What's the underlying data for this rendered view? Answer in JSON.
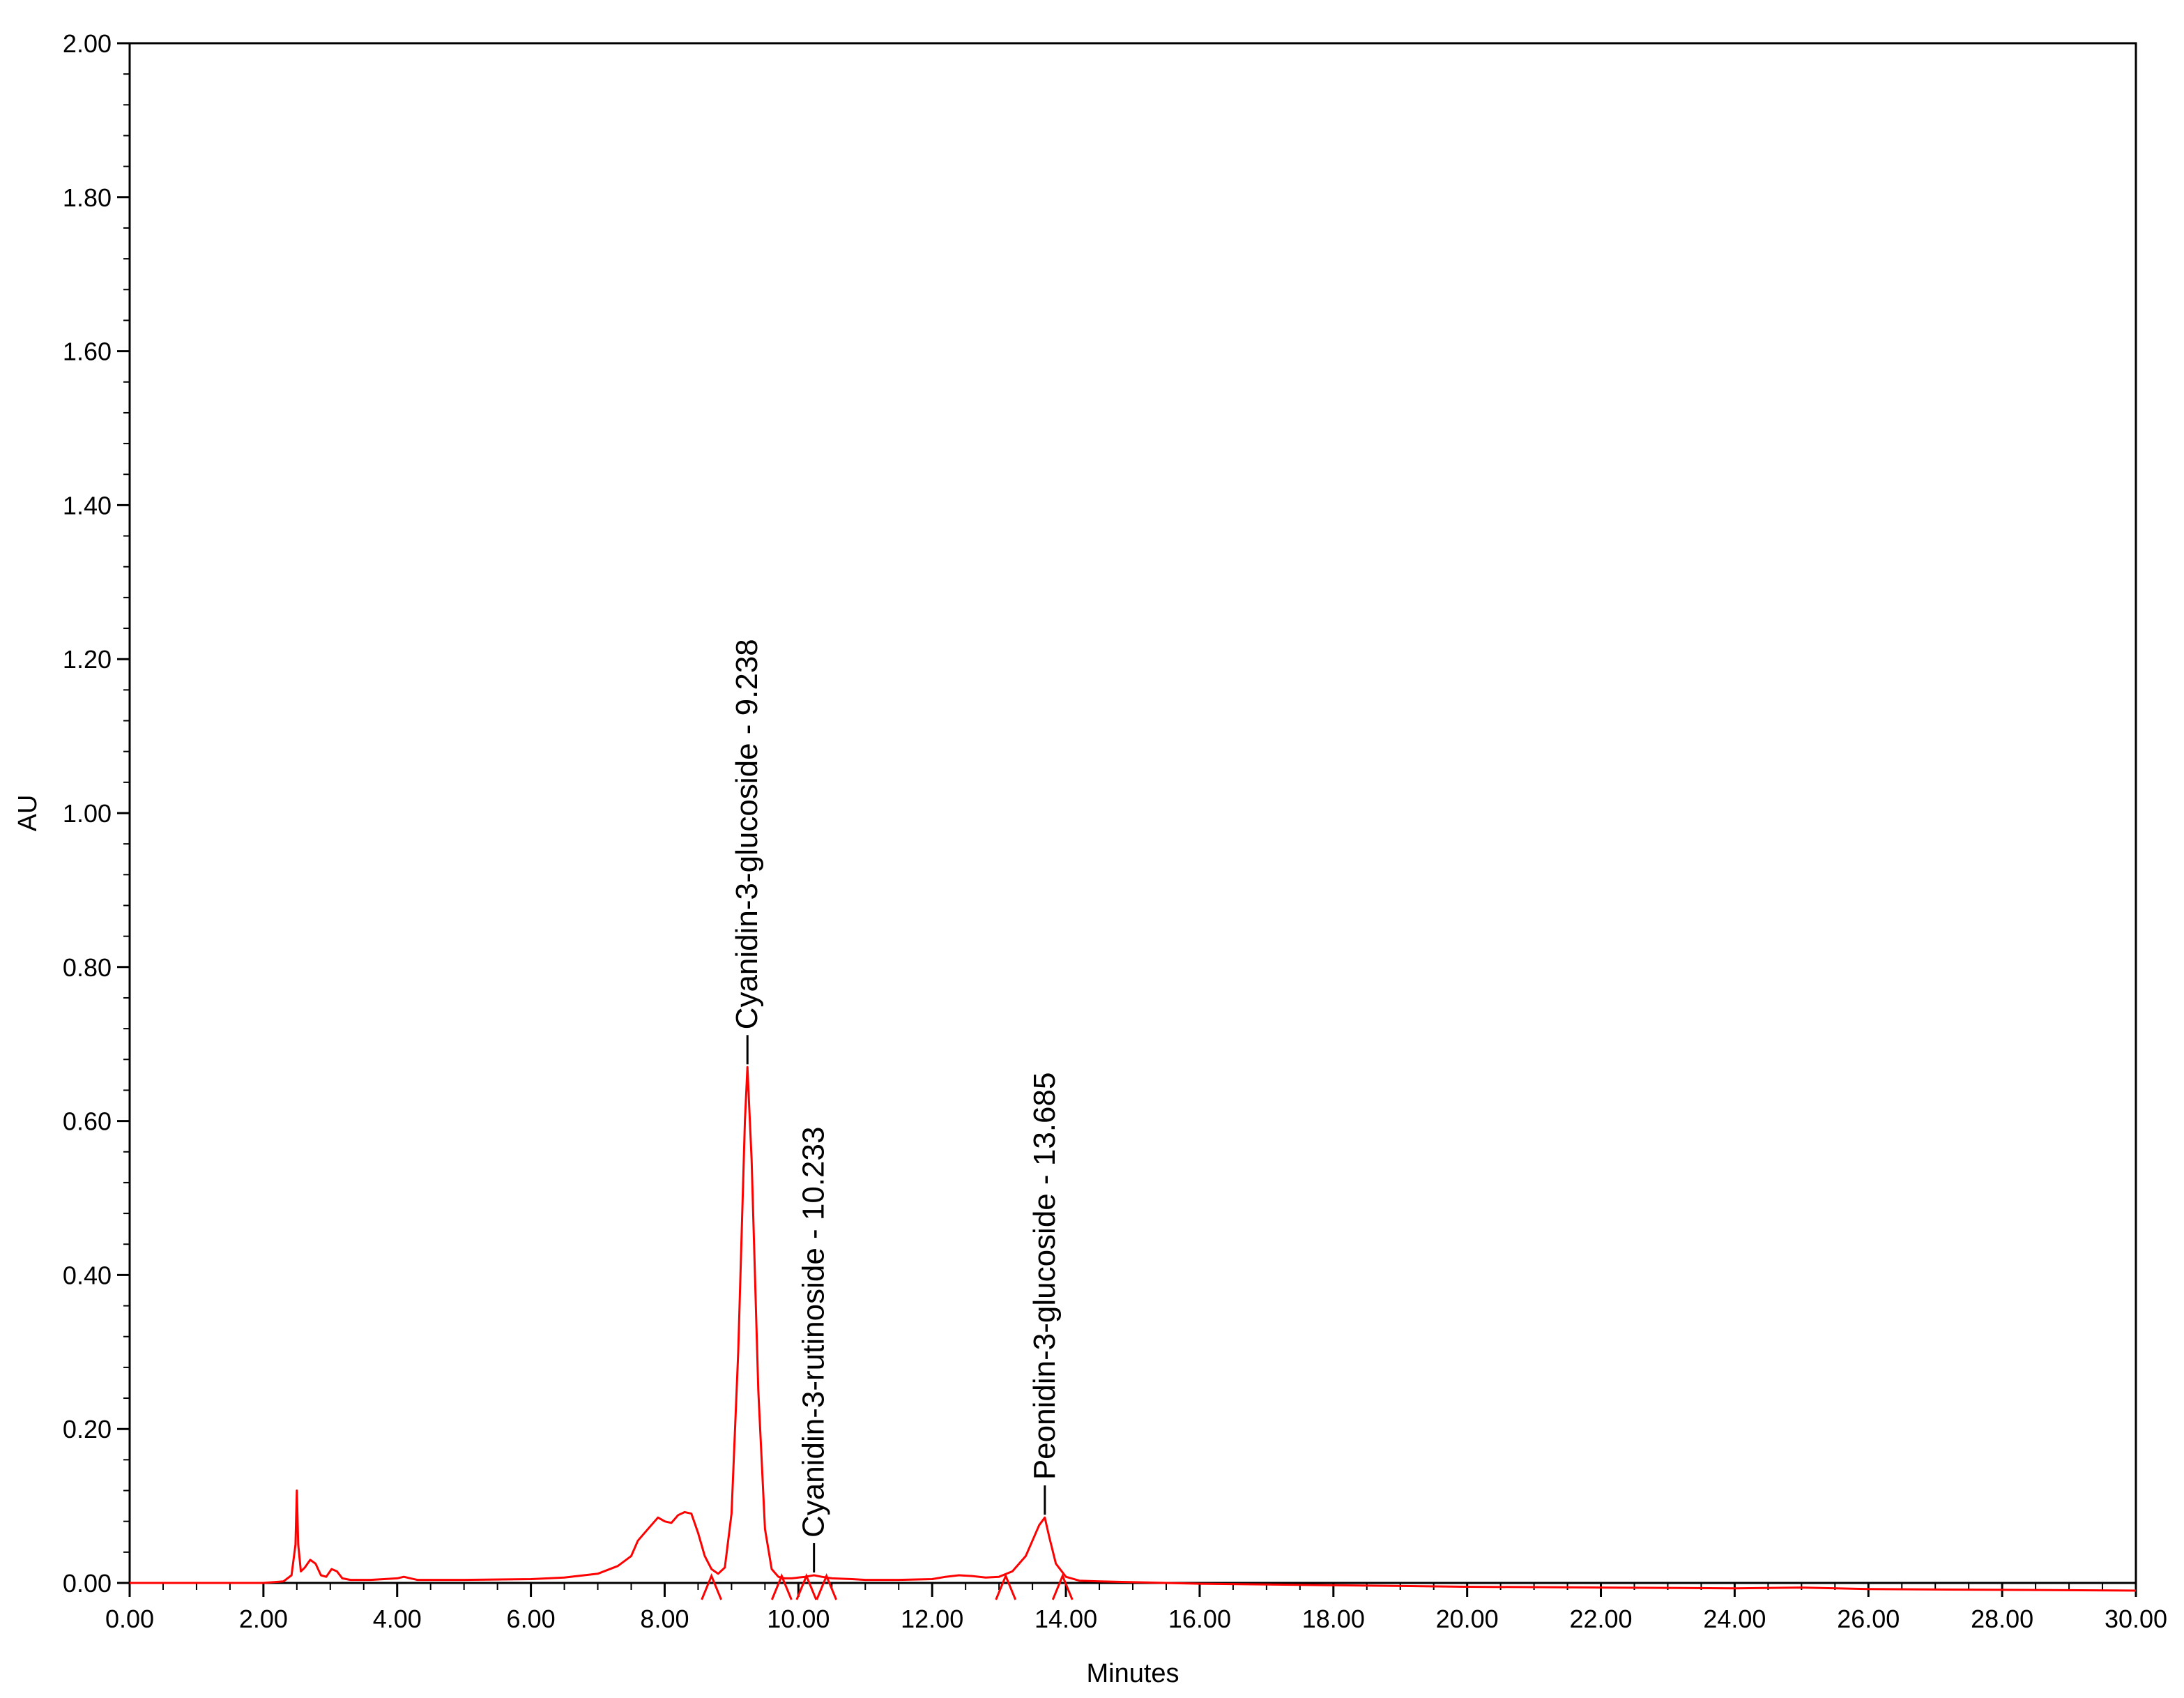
{
  "chart_data": {
    "type": "line",
    "title": "",
    "xlabel": "Minutes",
    "ylabel": "AU",
    "xlim": [
      0,
      30
    ],
    "ylim": [
      0,
      2.0
    ],
    "x_ticks": [
      "0.00",
      "2.00",
      "4.00",
      "6.00",
      "8.00",
      "10.00",
      "12.00",
      "14.00",
      "16.00",
      "18.00",
      "20.00",
      "22.00",
      "24.00",
      "26.00",
      "28.00",
      "30.00"
    ],
    "y_ticks": [
      "0.00",
      "0.20",
      "0.40",
      "0.60",
      "0.80",
      "1.00",
      "1.20",
      "1.40",
      "1.60",
      "1.80",
      "2.00"
    ],
    "grid": false,
    "colors": {
      "trace": "#ff0000",
      "axis": "#000000",
      "background": "#ffffff"
    },
    "series": [
      {
        "x": [
          0.0,
          1.0,
          2.0,
          2.3,
          2.42,
          2.48,
          2.5,
          2.52,
          2.56,
          2.62,
          2.7,
          2.78,
          2.86,
          2.94,
          3.02,
          3.1,
          3.18,
          3.3,
          3.6,
          4.0,
          4.1,
          4.2,
          4.3,
          4.6,
          5.0,
          6.0,
          6.5,
          7.0,
          7.3,
          7.5,
          7.6,
          7.75,
          7.9,
          8.0,
          8.1,
          8.2,
          8.3,
          8.4,
          8.5,
          8.6,
          8.7,
          8.8,
          8.9,
          9.0,
          9.1,
          9.2,
          9.238,
          9.3,
          9.4,
          9.5,
          9.6,
          9.7,
          9.8,
          9.9,
          10.0,
          10.1,
          10.233,
          10.35,
          10.5,
          10.8,
          11.0,
          11.5,
          12.0,
          12.2,
          12.4,
          12.6,
          12.8,
          13.0,
          13.2,
          13.4,
          13.5,
          13.6,
          13.685,
          13.75,
          13.85,
          14.0,
          14.2,
          14.5,
          15.0,
          16.0,
          18.0,
          20.0,
          22.0,
          24.0,
          25.0,
          26.0,
          28.0,
          30.0
        ],
        "y": [
          0.0,
          0.0,
          0.0,
          0.002,
          0.01,
          0.05,
          0.12,
          0.05,
          0.015,
          0.02,
          0.03,
          0.025,
          0.01,
          0.008,
          0.018,
          0.015,
          0.006,
          0.004,
          0.004,
          0.006,
          0.008,
          0.006,
          0.004,
          0.004,
          0.004,
          0.005,
          0.007,
          0.012,
          0.022,
          0.035,
          0.055,
          0.07,
          0.085,
          0.08,
          0.078,
          0.088,
          0.092,
          0.09,
          0.065,
          0.035,
          0.018,
          0.012,
          0.02,
          0.09,
          0.3,
          0.6,
          0.67,
          0.55,
          0.25,
          0.07,
          0.018,
          0.008,
          0.006,
          0.006,
          0.007,
          0.008,
          0.01,
          0.008,
          0.006,
          0.005,
          0.004,
          0.004,
          0.005,
          0.008,
          0.01,
          0.009,
          0.007,
          0.008,
          0.015,
          0.035,
          0.055,
          0.075,
          0.085,
          0.06,
          0.025,
          0.008,
          0.003,
          0.002,
          0.001,
          -0.001,
          -0.003,
          -0.005,
          -0.006,
          -0.007,
          -0.006,
          -0.008,
          -0.009,
          -0.01
        ]
      }
    ],
    "annotations": [
      {
        "x": 9.238,
        "y": 0.67,
        "text": "Cyanidin-3-glucoside - 9.238"
      },
      {
        "x": 10.233,
        "y": 0.01,
        "text": "Cyanidin-3-rutinoside - 10.233"
      },
      {
        "x": 13.685,
        "y": 0.085,
        "text": "Peonidin-3-glucoside - 13.685"
      }
    ],
    "integration_marks": [
      8.7,
      9.75,
      10.12,
      10.42,
      13.1,
      13.95
    ]
  }
}
